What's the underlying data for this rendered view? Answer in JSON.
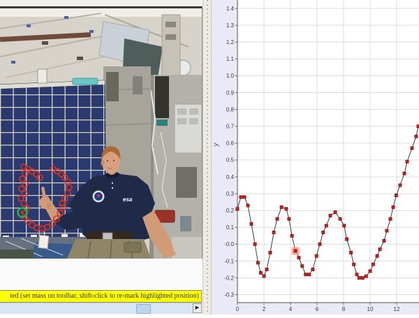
{
  "status_bar": {
    "text": "ted (set mass on toolbar, shift-click to re-mark highlighted position)"
  },
  "scrollbar": {
    "thumb_x": 195,
    "thumb_w": 19,
    "right_button_glyph": "▶"
  },
  "video": {
    "shirt_logo": "esa",
    "marker_color": "#e03020",
    "highlight_marker_color": "#2fae3e",
    "trail_markers": [
      [
        34,
        230
      ],
      [
        40,
        233
      ],
      [
        46,
        236
      ],
      [
        52,
        240
      ],
      [
        57,
        245
      ],
      [
        76,
        233
      ],
      [
        82,
        236
      ],
      [
        88,
        240
      ],
      [
        93,
        245
      ],
      [
        97,
        251
      ],
      [
        99,
        259
      ],
      [
        97,
        267
      ],
      [
        93,
        275
      ],
      [
        89,
        282
      ],
      [
        36,
        239
      ],
      [
        32,
        247
      ],
      [
        36,
        254
      ],
      [
        31,
        261
      ],
      [
        35,
        268
      ],
      [
        30,
        275
      ],
      [
        34,
        282
      ],
      [
        38,
        289
      ],
      [
        35,
        302
      ],
      [
        40,
        308
      ],
      [
        46,
        313
      ],
      [
        53,
        317
      ],
      [
        60,
        318
      ],
      [
        68,
        316
      ],
      [
        75,
        311
      ],
      [
        81,
        304
      ],
      [
        86,
        296
      ],
      [
        90,
        288
      ]
    ],
    "highlight_marker": [
      32,
      295
    ]
  },
  "chart_data": {
    "type": "scatter",
    "title": "",
    "xlabel": "",
    "ylabel": "y",
    "grid": true,
    "xlim": [
      0,
      13.68
    ],
    "ylim": [
      -0.347,
      1.45
    ],
    "x_ticks": [
      [
        "0",
        0
      ],
      [
        "2",
        2
      ],
      [
        "4",
        4
      ],
      [
        "6",
        6
      ],
      [
        "8",
        8
      ],
      [
        "10",
        10
      ],
      [
        "12",
        12
      ]
    ],
    "y_ticks": [
      [
        "1.4",
        1.4
      ],
      [
        "1.3",
        1.3
      ],
      [
        "1.2",
        1.2
      ],
      [
        "1.1",
        1.1
      ],
      [
        "1.0",
        1.0
      ],
      [
        "0.9",
        0.9
      ],
      [
        "0.8",
        0.8
      ],
      [
        "0.7",
        0.7
      ],
      [
        "0.6",
        0.6
      ],
      [
        "0.5",
        0.5
      ],
      [
        "0.4",
        0.4
      ],
      [
        "0.3",
        0.3
      ],
      [
        "0.2",
        0.2
      ],
      [
        "0.1",
        0.1
      ],
      [
        "-0.0",
        0.0
      ],
      [
        "-0.1",
        -0.1
      ],
      [
        "-0.2",
        -0.2
      ],
      [
        "-0.3",
        -0.3
      ]
    ],
    "marker_color": "#cc1f1f",
    "line_color": "#3c3c3c",
    "highlight_color": "#ff9a8a",
    "highlight_index": 17,
    "points": [
      [
        0.0,
        0.21
      ],
      [
        0.26,
        0.28
      ],
      [
        0.53,
        0.28
      ],
      [
        0.79,
        0.23
      ],
      [
        1.05,
        0.12
      ],
      [
        1.32,
        0.0
      ],
      [
        1.55,
        -0.11
      ],
      [
        1.76,
        -0.17
      ],
      [
        2.0,
        -0.19
      ],
      [
        2.21,
        -0.15
      ],
      [
        2.47,
        -0.05
      ],
      [
        2.74,
        0.07
      ],
      [
        3.0,
        0.15
      ],
      [
        3.32,
        0.22
      ],
      [
        3.68,
        0.21
      ],
      [
        3.89,
        0.15
      ],
      [
        4.11,
        0.05
      ],
      [
        4.37,
        -0.04
      ],
      [
        4.63,
        -0.08
      ],
      [
        4.88,
        -0.13
      ],
      [
        5.14,
        -0.18
      ],
      [
        5.4,
        -0.18
      ],
      [
        5.68,
        -0.15
      ],
      [
        5.96,
        -0.07
      ],
      [
        6.21,
        0.0
      ],
      [
        6.46,
        0.07
      ],
      [
        6.7,
        0.11
      ],
      [
        7.0,
        0.17
      ],
      [
        7.37,
        0.19
      ],
      [
        7.74,
        0.15
      ],
      [
        8.04,
        0.11
      ],
      [
        8.24,
        0.03
      ],
      [
        8.56,
        -0.05
      ],
      [
        8.77,
        -0.12
      ],
      [
        9.0,
        -0.18
      ],
      [
        9.17,
        -0.2
      ],
      [
        9.44,
        -0.2
      ],
      [
        9.7,
        -0.19
      ],
      [
        10.0,
        -0.16
      ],
      [
        10.23,
        -0.12
      ],
      [
        10.53,
        -0.07
      ],
      [
        10.74,
        -0.03
      ],
      [
        11.05,
        0.02
      ],
      [
        11.26,
        0.08
      ],
      [
        11.53,
        0.15
      ],
      [
        11.74,
        0.22
      ],
      [
        11.97,
        0.29
      ],
      [
        12.26,
        0.35
      ],
      [
        12.58,
        0.42
      ],
      [
        12.79,
        0.49
      ],
      [
        13.16,
        0.57
      ],
      [
        13.47,
        0.64
      ],
      [
        13.63,
        0.7
      ]
    ]
  }
}
